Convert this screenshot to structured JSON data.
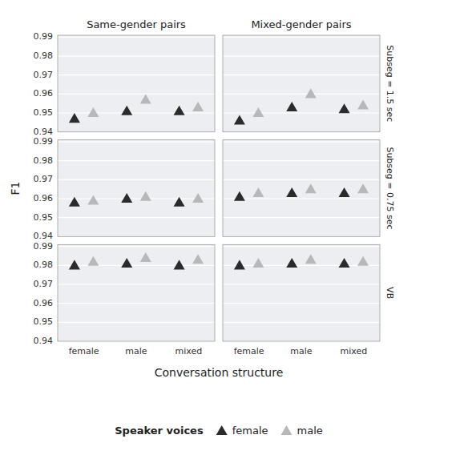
{
  "chart_data": {
    "type": "scatter",
    "x_label": "Conversation structure",
    "y_label": "F1",
    "categories": [
      "female",
      "male",
      "mixed"
    ],
    "ylim": [
      0.94,
      0.991
    ],
    "yticks": [
      0.94,
      0.95,
      0.96,
      0.97,
      0.98,
      0.99
    ],
    "grid": true,
    "marker": "triangle",
    "legend": "bottom",
    "legend_title": "Speaker voices",
    "series": [
      {
        "name": "female",
        "color": "#2b2b2b"
      },
      {
        "name": "male",
        "color": "#b8b8b8"
      }
    ],
    "col_labels": [
      "Same-gender pairs",
      "Mixed-gender pairs"
    ],
    "row_labels": [
      "Subseg = 1.5 sec",
      "Subseg = 0.75 sec",
      "VB"
    ],
    "panels": [
      [
        {
          "series": [
            {
              "values": [
                0.947,
                0.951,
                0.951
              ]
            },
            {
              "values": [
                0.95,
                0.957,
                0.953
              ]
            }
          ]
        },
        {
          "series": [
            {
              "values": [
                0.946,
                0.953,
                0.952
              ]
            },
            {
              "values": [
                0.95,
                0.96,
                0.954
              ]
            }
          ]
        }
      ],
      [
        {
          "series": [
            {
              "values": [
                0.958,
                0.96,
                0.958
              ]
            },
            {
              "values": [
                0.959,
                0.961,
                0.96
              ]
            }
          ]
        },
        {
          "series": [
            {
              "values": [
                0.961,
                0.963,
                0.963
              ]
            },
            {
              "values": [
                0.963,
                0.965,
                0.965
              ]
            }
          ]
        }
      ],
      [
        {
          "series": [
            {
              "values": [
                0.98,
                0.981,
                0.98
              ]
            },
            {
              "values": [
                0.982,
                0.984,
                0.983
              ]
            }
          ]
        },
        {
          "series": [
            {
              "values": [
                0.98,
                0.981,
                0.981
              ]
            },
            {
              "values": [
                0.981,
                0.983,
                0.982
              ]
            }
          ]
        }
      ]
    ]
  }
}
